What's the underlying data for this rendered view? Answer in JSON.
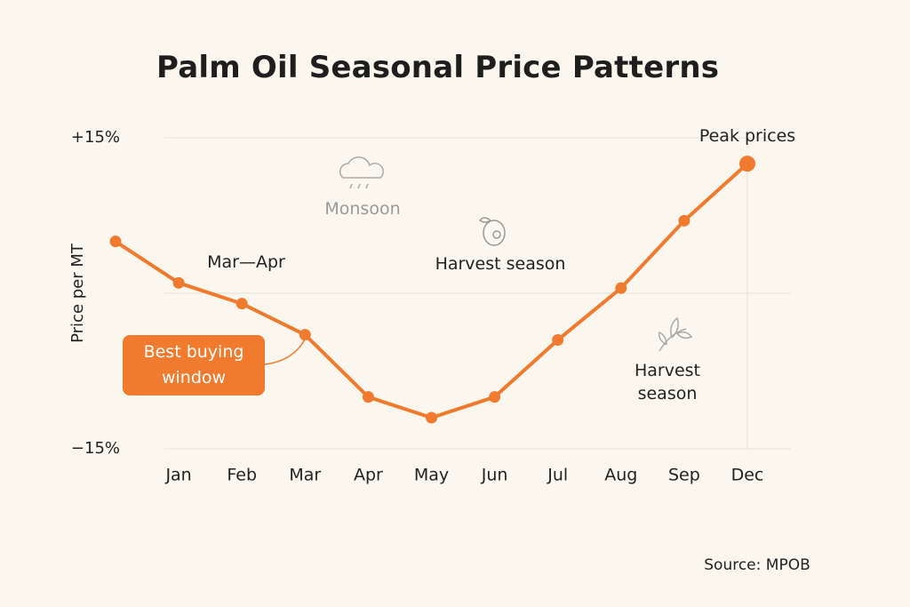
{
  "chart_data": {
    "type": "line",
    "title": "Palm Oil Seasonal Price Patterns",
    "y_label": "Price per MT",
    "categories": [
      null,
      "Jan",
      "Feb",
      "Mar",
      "Apr",
      "May",
      "Jun",
      "Jul",
      "Aug",
      "Sep",
      "Dec"
    ],
    "series": [
      {
        "name": "Price",
        "color": "#f07a2e",
        "values": [
          5,
          1,
          -1,
          -4,
          -10,
          -12,
          -10,
          -4.5,
          0.5,
          7,
          12.5
        ]
      }
    ],
    "ylim": [
      -15,
      15
    ],
    "yticks": [
      {
        "value": 15,
        "label": "+15%"
      },
      {
        "value": 0,
        "label": null
      },
      {
        "value": -15,
        "label": "−15%"
      }
    ],
    "grid": true,
    "annotations": [
      "Peak prices",
      "Monsoon",
      "Mar—Apr",
      "Harvest season",
      "Best buying window",
      "Harvest season"
    ],
    "source": "Source: MPOB"
  }
}
